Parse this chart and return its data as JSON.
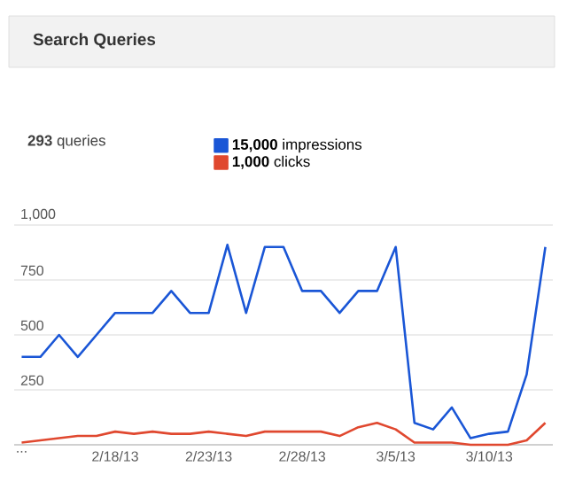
{
  "chart_data": {
    "type": "line",
    "title": "Search Queries",
    "annotations": [
      "**293** queries"
    ],
    "categories": [
      "...",
      null,
      null,
      null,
      null,
      "2/18/13",
      null,
      null,
      null,
      null,
      "2/23/13",
      null,
      null,
      null,
      null,
      "2/28/13",
      null,
      null,
      null,
      null,
      "3/5/13",
      null,
      null,
      null,
      null,
      "3/10/13",
      null,
      null,
      null
    ],
    "series": [
      {
        "name": "**15,000** impressions",
        "color": "#1a56d6",
        "values": [
          400,
          400,
          500,
          400,
          500,
          600,
          600,
          600,
          700,
          600,
          600,
          910,
          600,
          900,
          900,
          700,
          700,
          600,
          700,
          700,
          900,
          100,
          70,
          170,
          30,
          50,
          60,
          320,
          900
        ]
      },
      {
        "name": "**1,000** clicks",
        "color": "#e0482f",
        "values": [
          10,
          20,
          30,
          40,
          40,
          60,
          50,
          60,
          50,
          50,
          60,
          50,
          40,
          60,
          60,
          60,
          60,
          40,
          80,
          100,
          70,
          10,
          10,
          10,
          0,
          0,
          0,
          20,
          100
        ]
      }
    ],
    "ylim": [
      0,
      1000
    ],
    "yticks": [
      {
        "value": 0,
        "label": null
      },
      250,
      500,
      750,
      {
        "value": 1000,
        "label": "1,000"
      }
    ],
    "grid": "y",
    "legend": "top",
    "marker": "none",
    "line_style": "solid"
  }
}
